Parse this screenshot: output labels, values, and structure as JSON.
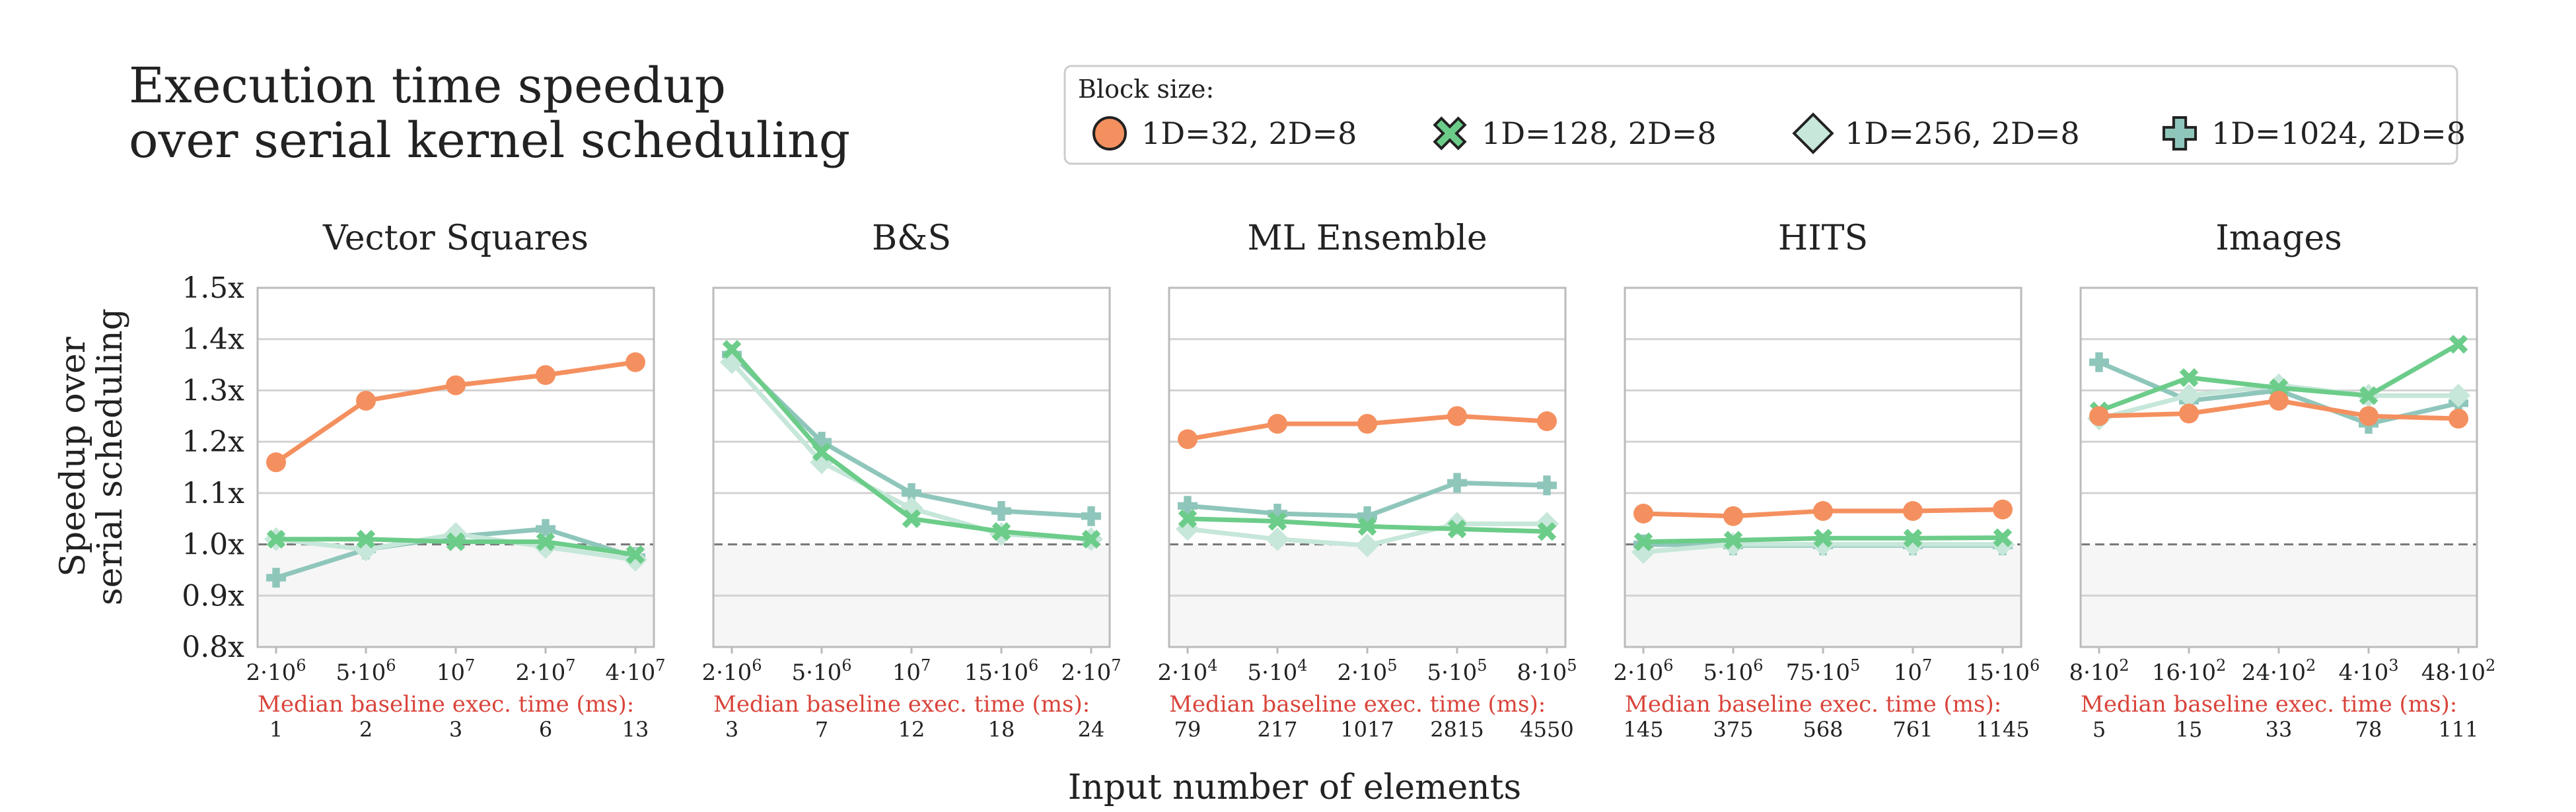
{
  "title_lines": [
    "Execution time speedup",
    "over serial kernel scheduling"
  ],
  "legend": {
    "title": "Block size:",
    "entries": [
      {
        "label": "1D=32, 2D=8",
        "marker": "circle",
        "color": "#f4905f"
      },
      {
        "label": "1D=128, 2D=8",
        "marker": "x",
        "color": "#6ccc89"
      },
      {
        "label": "1D=256, 2D=8",
        "marker": "diamond",
        "color": "#c6e7d9"
      },
      {
        "label": "1D=1024, 2D=8",
        "marker": "plus",
        "color": "#8fc6bb"
      }
    ]
  },
  "y_axis_label": [
    "Speedup over",
    "serial scheduling"
  ],
  "x_axis_label": "Input number of elements",
  "median_label": "Median baseline exec. time (ms):",
  "y_ticks": [
    "0.8x",
    "0.9x",
    "1.0x",
    "1.1x",
    "1.2x",
    "1.3x",
    "1.4x",
    "1.5x"
  ],
  "reference_line": 1.0,
  "chart_data": [
    {
      "type": "line",
      "title": "Vector Squares",
      "ylim": [
        0.8,
        1.5
      ],
      "x_ticks": [
        [
          "2·10",
          "6"
        ],
        [
          "5·10",
          "6"
        ],
        [
          "10",
          "7"
        ],
        [
          "2·10",
          "7"
        ],
        [
          "4·10",
          "7"
        ]
      ],
      "median_times": [
        "1",
        "2",
        "3",
        "6",
        "13"
      ],
      "series": [
        {
          "name": "1D=32, 2D=8",
          "values": [
            1.16,
            1.28,
            1.31,
            1.33,
            1.355
          ]
        },
        {
          "name": "1D=128, 2D=8",
          "values": [
            1.01,
            1.01,
            1.005,
            1.005,
            0.98
          ]
        },
        {
          "name": "1D=256, 2D=8",
          "values": [
            1.01,
            0.99,
            1.02,
            0.995,
            0.97
          ]
        },
        {
          "name": "1D=1024, 2D=8",
          "values": [
            0.935,
            0.99,
            1.015,
            1.03,
            0.975
          ]
        }
      ]
    },
    {
      "type": "line",
      "title": "B&S",
      "ylim": [
        0.8,
        1.5
      ],
      "x_ticks": [
        [
          "2·10",
          "6"
        ],
        [
          "5·10",
          "6"
        ],
        [
          "10",
          "7"
        ],
        [
          "15·10",
          "6"
        ],
        [
          "2·10",
          "7"
        ]
      ],
      "median_times": [
        "3",
        "7",
        "12",
        "18",
        "24"
      ],
      "series": [
        {
          "name": "1D=32, 2D=8",
          "values": []
        },
        {
          "name": "1D=128, 2D=8",
          "values": [
            1.38,
            1.18,
            1.05,
            1.025,
            1.01
          ]
        },
        {
          "name": "1D=256, 2D=8",
          "values": [
            1.355,
            1.16,
            1.07,
            1.02,
            1.01
          ]
        },
        {
          "name": "1D=1024, 2D=8",
          "values": [
            1.37,
            1.2,
            1.1,
            1.065,
            1.055
          ]
        }
      ]
    },
    {
      "type": "line",
      "title": "ML Ensemble",
      "ylim": [
        0.8,
        1.5
      ],
      "x_ticks": [
        [
          "2·10",
          "4"
        ],
        [
          "5·10",
          "4"
        ],
        [
          "2·10",
          "5"
        ],
        [
          "5·10",
          "5"
        ],
        [
          "8·10",
          "5"
        ]
      ],
      "median_times": [
        "79",
        "217",
        "1017",
        "2815",
        "4550"
      ],
      "series": [
        {
          "name": "1D=32, 2D=8",
          "values": [
            1.205,
            1.235,
            1.235,
            1.25,
            1.24
          ]
        },
        {
          "name": "1D=128, 2D=8",
          "values": [
            1.05,
            1.045,
            1.035,
            1.03,
            1.025
          ]
        },
        {
          "name": "1D=256, 2D=8",
          "values": [
            1.03,
            1.01,
            0.998,
            1.04,
            1.04
          ]
        },
        {
          "name": "1D=1024, 2D=8",
          "values": [
            1.075,
            1.06,
            1.055,
            1.12,
            1.115
          ]
        }
      ]
    },
    {
      "type": "line",
      "title": "HITS",
      "ylim": [
        0.8,
        1.5
      ],
      "x_ticks": [
        [
          "2·10",
          "6"
        ],
        [
          "5·10",
          "6"
        ],
        [
          "75·10",
          "5"
        ],
        [
          "10",
          "7"
        ],
        [
          "15·10",
          "6"
        ]
      ],
      "median_times": [
        "145",
        "375",
        "568",
        "761",
        "1145"
      ],
      "series": [
        {
          "name": "1D=32, 2D=8",
          "values": [
            1.06,
            1.055,
            1.065,
            1.065,
            1.068
          ]
        },
        {
          "name": "1D=128, 2D=8",
          "values": [
            1.005,
            1.008,
            1.012,
            1.012,
            1.013
          ]
        },
        {
          "name": "1D=256, 2D=8",
          "values": [
            0.985,
            1.0,
            1.0,
            1.0,
            1.0
          ]
        },
        {
          "name": "1D=1024, 2D=8",
          "values": [
            1.0,
            0.998,
            0.998,
            0.998,
            0.998
          ]
        }
      ]
    },
    {
      "type": "line",
      "title": "Images",
      "ylim": [
        0.8,
        1.5
      ],
      "x_ticks": [
        [
          "8·10",
          "2"
        ],
        [
          "16·10",
          "2"
        ],
        [
          "24·10",
          "2"
        ],
        [
          "4·10",
          "3"
        ],
        [
          "48·10",
          "2"
        ]
      ],
      "median_times": [
        "5",
        "15",
        "33",
        "78",
        "111"
      ],
      "series": [
        {
          "name": "1D=32, 2D=8",
          "values": [
            1.25,
            1.255,
            1.28,
            1.25,
            1.245
          ]
        },
        {
          "name": "1D=128, 2D=8",
          "values": [
            1.26,
            1.325,
            1.305,
            1.29,
            1.39
          ]
        },
        {
          "name": "1D=256, 2D=8",
          "values": [
            1.245,
            1.29,
            1.31,
            1.29,
            1.29
          ]
        },
        {
          "name": "1D=1024, 2D=8",
          "values": [
            1.355,
            1.28,
            1.3,
            1.235,
            1.275
          ]
        }
      ]
    }
  ]
}
